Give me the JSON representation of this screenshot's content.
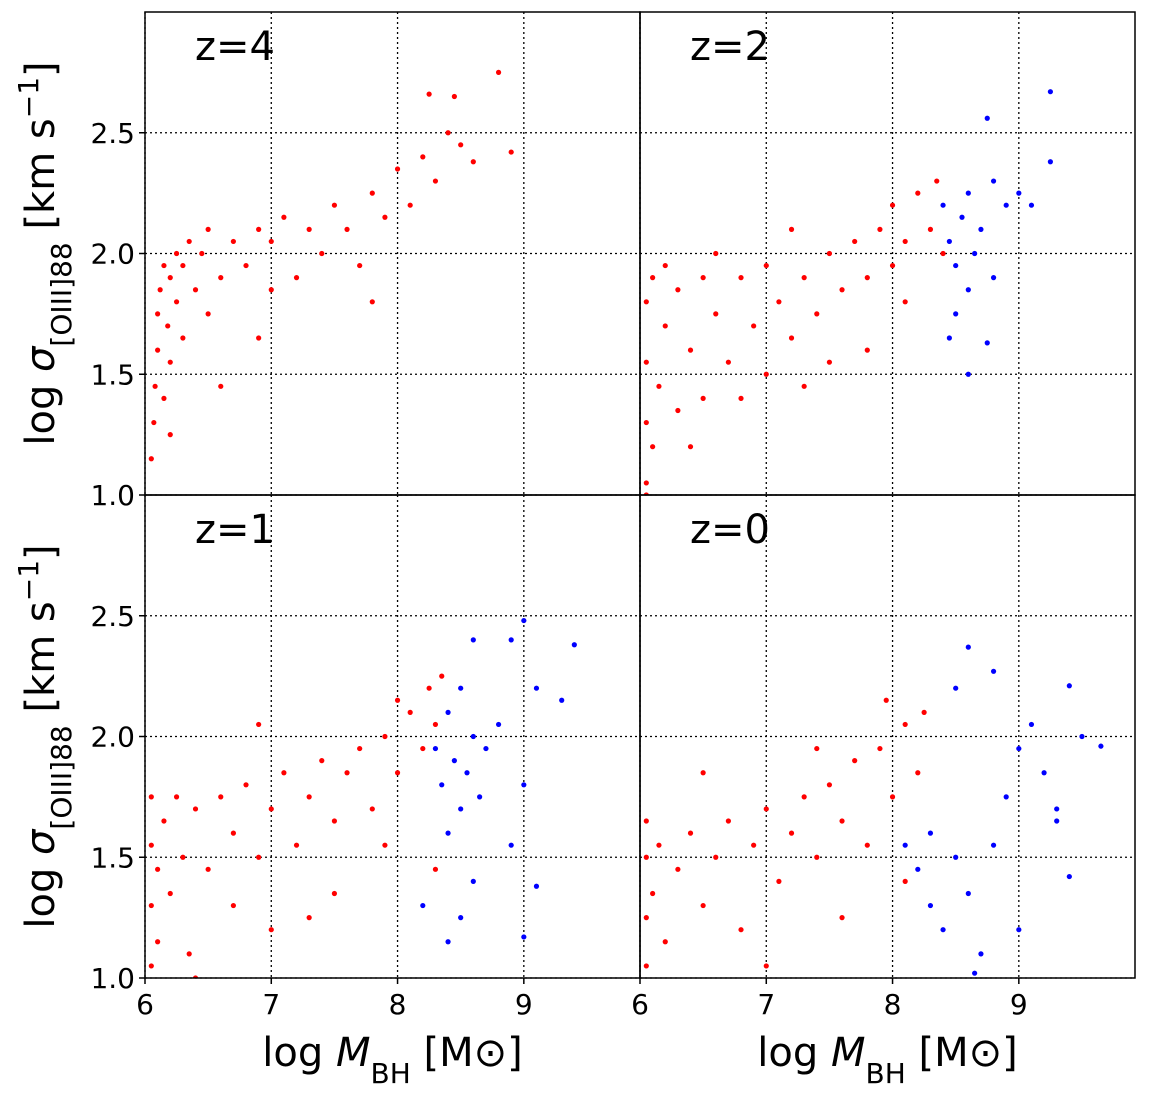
{
  "chart_data": [
    {
      "type": "scatter",
      "title": "z=4",
      "xlim": [
        6,
        9.92
      ],
      "ylim": [
        1,
        3
      ],
      "xticks": [
        6,
        7,
        8,
        9
      ],
      "yticks": [
        {
          "value": 1,
          "label": "1.0"
        },
        {
          "value": 1.5,
          "label": "1.5"
        },
        {
          "value": 2,
          "label": "2.0"
        },
        {
          "value": 2.5,
          "label": "2.5"
        }
      ],
      "grid": true,
      "xtick_labels": false,
      "ytick_labels": true,
      "ylabel": [
        "log ",
        "σ",
        "[O",
        "III",
        "]88",
        " [km s",
        "−1",
        "]"
      ],
      "series": [
        {
          "color": "#ff0000",
          "x": [
            6.05,
            6.07,
            6.08,
            6.1,
            6.1,
            6.12,
            6.15,
            6.15,
            6.18,
            6.2,
            6.2,
            6.25,
            6.25,
            6.3,
            6.3,
            6.35,
            6.4,
            6.45,
            6.5,
            6.5,
            6.6,
            6.7,
            6.8,
            6.9,
            7.0,
            7.0,
            7.1,
            7.2,
            7.3,
            7.4,
            7.5,
            7.6,
            7.7,
            7.8,
            7.9,
            8.0,
            8.1,
            8.2,
            8.3,
            8.4,
            8.5,
            8.6,
            8.8,
            8.9,
            8.25,
            7.8,
            6.9,
            6.6,
            6.2,
            8.45
          ],
          "y": [
            1.15,
            1.3,
            1.45,
            1.6,
            1.75,
            1.85,
            1.4,
            1.95,
            1.7,
            1.55,
            1.9,
            2.0,
            1.8,
            1.65,
            1.95,
            2.05,
            1.85,
            2.0,
            1.75,
            2.1,
            1.9,
            2.05,
            1.95,
            2.1,
            1.85,
            2.05,
            2.15,
            1.9,
            2.1,
            2.0,
            2.2,
            2.1,
            1.95,
            2.25,
            2.15,
            2.35,
            2.2,
            2.4,
            2.3,
            2.5,
            2.45,
            2.38,
            2.75,
            2.42,
            2.66,
            1.8,
            1.65,
            1.45,
            1.25,
            2.65
          ]
        }
      ]
    },
    {
      "type": "scatter",
      "title": "z=2",
      "xlim": [
        6,
        9.92
      ],
      "ylim": [
        1,
        3
      ],
      "xticks": [
        6,
        7,
        8,
        9
      ],
      "yticks": [
        {
          "value": 1,
          "label": "1.0"
        },
        {
          "value": 1.5,
          "label": "1.5"
        },
        {
          "value": 2,
          "label": "2.0"
        },
        {
          "value": 2.5,
          "label": "2.5"
        }
      ],
      "grid": true,
      "xtick_labels": false,
      "ytick_labels": false,
      "series": [
        {
          "color": "#ff0000",
          "x": [
            6.05,
            6.05,
            6.05,
            6.05,
            6.1,
            6.1,
            6.15,
            6.2,
            6.2,
            6.3,
            6.3,
            6.4,
            6.5,
            6.5,
            6.6,
            6.7,
            6.8,
            6.9,
            7.0,
            7.0,
            7.1,
            7.2,
            7.3,
            7.4,
            7.5,
            7.5,
            7.6,
            7.7,
            7.8,
            7.9,
            8.0,
            8.0,
            8.1,
            8.2,
            8.3,
            8.35,
            8.4,
            7.3,
            6.8,
            6.4,
            7.8,
            8.1,
            6.6,
            7.2,
            6.05
          ],
          "y": [
            1.05,
            1.3,
            1.55,
            1.8,
            1.9,
            1.2,
            1.45,
            1.7,
            1.95,
            1.35,
            1.85,
            1.6,
            1.9,
            1.4,
            1.75,
            1.55,
            1.9,
            1.7,
            1.95,
            1.5,
            1.8,
            1.65,
            1.9,
            1.75,
            2.0,
            1.55,
            1.85,
            2.05,
            1.9,
            2.1,
            1.95,
            2.2,
            2.05,
            2.25,
            2.1,
            2.3,
            2.0,
            1.45,
            1.4,
            1.2,
            1.6,
            1.8,
            2.0,
            2.1,
            1.0
          ]
        },
        {
          "color": "#0000ff",
          "x": [
            8.4,
            8.45,
            8.5,
            8.55,
            8.6,
            8.6,
            8.65,
            8.7,
            8.5,
            8.75,
            8.8,
            8.9,
            9.0,
            9.25,
            9.25,
            9.1,
            8.6,
            8.75,
            8.45,
            8.8
          ],
          "y": [
            2.2,
            2.05,
            1.95,
            2.15,
            1.85,
            2.25,
            2.0,
            2.1,
            1.75,
            2.56,
            1.9,
            2.2,
            2.25,
            2.67,
            2.38,
            2.2,
            1.5,
            1.63,
            1.65,
            2.3
          ]
        }
      ]
    },
    {
      "type": "scatter",
      "title": "z=1",
      "xlim": [
        6,
        9.92
      ],
      "ylim": [
        1,
        3
      ],
      "xticks": [
        6,
        7,
        8,
        9
      ],
      "yticks": [
        {
          "value": 1,
          "label": "1.0"
        },
        {
          "value": 1.5,
          "label": "1.5"
        },
        {
          "value": 2,
          "label": "2.0"
        },
        {
          "value": 2.5,
          "label": "2.5"
        }
      ],
      "grid": true,
      "xtick_labels": true,
      "ytick_labels": true,
      "ylabel": [
        "log ",
        "σ",
        "[O",
        "III",
        "]88",
        " [km s",
        "−1",
        "]"
      ],
      "xlabel": [
        "log ",
        "M",
        "BH",
        " [M",
        "⊙",
        "]"
      ],
      "series": [
        {
          "color": "#ff0000",
          "x": [
            6.05,
            6.05,
            6.05,
            6.05,
            6.1,
            6.1,
            6.15,
            6.2,
            6.25,
            6.3,
            6.35,
            6.4,
            6.5,
            6.6,
            6.7,
            6.7,
            6.8,
            6.9,
            7.0,
            7.0,
            7.1,
            7.2,
            7.3,
            7.4,
            7.5,
            7.6,
            7.7,
            7.8,
            7.9,
            8.0,
            8.1,
            8.2,
            8.25,
            8.3,
            8.35,
            7.5,
            7.9,
            6.9,
            6.4,
            8.3,
            7.3,
            8.0
          ],
          "y": [
            1.05,
            1.3,
            1.55,
            1.75,
            1.15,
            1.45,
            1.65,
            1.35,
            1.75,
            1.5,
            1.1,
            1.7,
            1.45,
            1.75,
            1.3,
            1.6,
            1.8,
            1.5,
            1.7,
            1.2,
            1.85,
            1.55,
            1.75,
            1.9,
            1.65,
            1.85,
            1.95,
            1.7,
            2.0,
            1.85,
            2.1,
            1.95,
            2.2,
            2.05,
            2.25,
            1.35,
            1.55,
            2.05,
            1.0,
            1.45,
            1.25,
            2.15
          ]
        },
        {
          "color": "#0000ff",
          "x": [
            8.3,
            8.35,
            8.4,
            8.4,
            8.45,
            8.5,
            8.5,
            8.55,
            8.6,
            8.6,
            8.65,
            8.7,
            8.8,
            8.9,
            9.0,
            9.1,
            9.3,
            9.4,
            9.0,
            8.4,
            8.5,
            9.0,
            9.1,
            8.2,
            8.6,
            8.9
          ],
          "y": [
            1.95,
            1.8,
            2.1,
            1.6,
            1.9,
            2.2,
            1.7,
            1.85,
            2.4,
            2.0,
            1.75,
            1.95,
            2.05,
            2.4,
            2.48,
            2.2,
            2.15,
            2.38,
            1.8,
            1.15,
            1.25,
            1.17,
            1.38,
            1.3,
            1.4,
            1.55
          ]
        }
      ]
    },
    {
      "type": "scatter",
      "title": "z=0",
      "xlim": [
        6,
        9.92
      ],
      "ylim": [
        1,
        3
      ],
      "xticks": [
        6,
        7,
        8,
        9
      ],
      "yticks": [
        {
          "value": 1,
          "label": "1.0"
        },
        {
          "value": 1.5,
          "label": "1.5"
        },
        {
          "value": 2,
          "label": "2.0"
        },
        {
          "value": 2.5,
          "label": "2.5"
        }
      ],
      "grid": true,
      "xtick_labels": true,
      "ytick_labels": false,
      "xlabel": [
        "log ",
        "M",
        "BH",
        " [M",
        "⊙",
        "]"
      ],
      "series": [
        {
          "color": "#ff0000",
          "x": [
            6.05,
            6.05,
            6.05,
            6.05,
            6.1,
            6.15,
            6.2,
            6.3,
            6.4,
            6.5,
            6.6,
            6.7,
            6.8,
            6.9,
            7.0,
            7.1,
            7.2,
            7.3,
            7.4,
            7.5,
            7.6,
            7.7,
            7.8,
            7.9,
            8.0,
            8.1,
            8.2,
            8.25,
            7.6,
            7.0,
            8.1,
            7.4,
            6.5,
            7.95
          ],
          "y": [
            1.05,
            1.25,
            1.5,
            1.65,
            1.35,
            1.55,
            1.15,
            1.45,
            1.6,
            1.3,
            1.5,
            1.65,
            1.2,
            1.55,
            1.7,
            1.4,
            1.6,
            1.75,
            1.5,
            1.8,
            1.65,
            1.9,
            1.55,
            1.95,
            1.75,
            2.05,
            1.85,
            2.1,
            1.25,
            1.05,
            1.4,
            1.95,
            1.85,
            2.15
          ]
        },
        {
          "color": "#0000ff",
          "x": [
            8.2,
            8.3,
            8.3,
            8.4,
            8.5,
            8.5,
            8.6,
            8.6,
            8.7,
            8.8,
            8.9,
            9.0,
            9.1,
            9.2,
            9.3,
            9.4,
            9.4,
            9.5,
            9.65,
            9.0,
            8.65,
            8.1,
            9.3,
            8.8
          ],
          "y": [
            1.45,
            1.3,
            1.6,
            1.2,
            1.5,
            2.2,
            1.35,
            2.37,
            1.1,
            2.27,
            1.75,
            1.95,
            2.05,
            1.85,
            1.65,
            2.21,
            1.42,
            2.0,
            1.96,
            1.2,
            1.02,
            1.55,
            1.7,
            1.55
          ]
        }
      ]
    }
  ]
}
